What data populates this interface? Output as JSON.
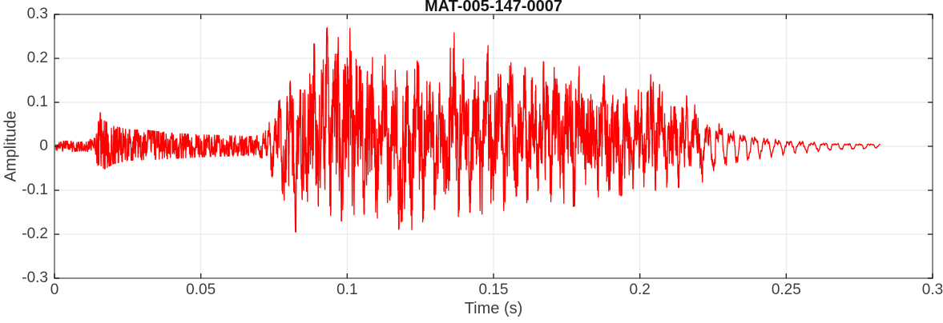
{
  "chart_data": {
    "type": "line",
    "title": "MAT-005-147-0007",
    "xlabel": "Time (s)",
    "ylabel": "Amplitude",
    "xlim": [
      0,
      0.3
    ],
    "ylim": [
      -0.3,
      0.3
    ],
    "grid": true,
    "legend_position": "none",
    "xticks": [
      {
        "v": 0,
        "label": "0"
      },
      {
        "v": 0.05,
        "label": "0.05"
      },
      {
        "v": 0.1,
        "label": "0.1"
      },
      {
        "v": 0.15,
        "label": "0.15"
      },
      {
        "v": 0.2,
        "label": "0.2"
      },
      {
        "v": 0.25,
        "label": "0.25"
      },
      {
        "v": 0.3,
        "label": "0.3"
      }
    ],
    "yticks": [
      {
        "v": 0.3,
        "label": "0.3"
      },
      {
        "v": 0.2,
        "label": "0.2"
      },
      {
        "v": 0.1,
        "label": "0.1"
      },
      {
        "v": 0,
        "label": "0"
      },
      {
        "v": -0.1,
        "label": "-0.1"
      },
      {
        "v": -0.2,
        "label": "-0.2"
      },
      {
        "v": -0.3,
        "label": "-0.3"
      }
    ],
    "colors": {
      "line": "#ff0000",
      "frame": "#8c8c8c",
      "grid": "#e6e6e6",
      "tick_mark": "#262626",
      "tick_label": "#3d3d3d",
      "title": "#151515",
      "background": "#ffffff"
    },
    "signal": {
      "t_start": 0,
      "t_end": 0.282,
      "sample_dt": 7e-05,
      "fundamental_hz": 252,
      "harmonics": [
        [
          1,
          0.58,
          0
        ],
        [
          2,
          0.27,
          1.7
        ],
        [
          3.9,
          0.13,
          0.6
        ],
        [
          7.2,
          0.09,
          2.1
        ]
      ],
      "noise_seed": 987654321,
      "envelope_keypoints": [
        [
          0.0,
          -0.006,
          0.006,
          0.6
        ],
        [
          0.001,
          -0.018,
          0.008,
          0.5
        ],
        [
          0.003,
          -0.01,
          0.012,
          0.7
        ],
        [
          0.006,
          -0.012,
          0.012,
          0.75
        ],
        [
          0.01,
          -0.01,
          0.01,
          0.75
        ],
        [
          0.014,
          -0.016,
          0.02,
          0.8
        ],
        [
          0.0152,
          -0.07,
          0.082,
          0.85
        ],
        [
          0.017,
          -0.052,
          0.058,
          0.85
        ],
        [
          0.02,
          -0.04,
          0.046,
          0.85
        ],
        [
          0.025,
          -0.032,
          0.038,
          0.85
        ],
        [
          0.032,
          -0.03,
          0.036,
          0.85
        ],
        [
          0.04,
          -0.028,
          0.03,
          0.85
        ],
        [
          0.05,
          -0.024,
          0.026,
          0.85
        ],
        [
          0.06,
          -0.022,
          0.024,
          0.85
        ],
        [
          0.068,
          -0.02,
          0.022,
          0.85
        ],
        [
          0.0715,
          -0.028,
          0.03,
          0.55
        ],
        [
          0.0735,
          -0.06,
          0.07,
          0.35
        ],
        [
          0.076,
          -0.09,
          0.11,
          0.35
        ],
        [
          0.0785,
          -0.13,
          0.13,
          0.38
        ],
        [
          0.081,
          -0.19,
          0.155,
          0.4
        ],
        [
          0.084,
          -0.2,
          0.2,
          0.42
        ],
        [
          0.087,
          -0.18,
          0.25,
          0.42
        ],
        [
          0.09,
          -0.17,
          0.26,
          0.45
        ],
        [
          0.094,
          -0.16,
          0.272,
          0.45
        ],
        [
          0.098,
          -0.17,
          0.285,
          0.45
        ],
        [
          0.101,
          -0.16,
          0.268,
          0.45
        ],
        [
          0.104,
          -0.15,
          0.24,
          0.45
        ],
        [
          0.108,
          -0.16,
          0.22,
          0.45
        ],
        [
          0.112,
          -0.17,
          0.21,
          0.45
        ],
        [
          0.116,
          -0.18,
          0.2,
          0.45
        ],
        [
          0.12,
          -0.21,
          0.22,
          0.45
        ],
        [
          0.1225,
          -0.23,
          0.262,
          0.45
        ],
        [
          0.125,
          -0.18,
          0.22,
          0.45
        ],
        [
          0.128,
          -0.15,
          0.19,
          0.45
        ],
        [
          0.131,
          -0.14,
          0.18,
          0.45
        ],
        [
          0.134,
          -0.15,
          0.2,
          0.45
        ],
        [
          0.137,
          -0.16,
          0.268,
          0.45
        ],
        [
          0.14,
          -0.16,
          0.2,
          0.45
        ],
        [
          0.144,
          -0.14,
          0.175,
          0.45
        ],
        [
          0.148,
          -0.17,
          0.23,
          0.45
        ],
        [
          0.152,
          -0.15,
          0.2,
          0.45
        ],
        [
          0.156,
          -0.14,
          0.19,
          0.45
        ],
        [
          0.16,
          -0.13,
          0.185,
          0.45
        ],
        [
          0.164,
          -0.125,
          0.2,
          0.45
        ],
        [
          0.168,
          -0.13,
          0.19,
          0.45
        ],
        [
          0.172,
          -0.13,
          0.2,
          0.45
        ],
        [
          0.176,
          -0.14,
          0.19,
          0.45
        ],
        [
          0.18,
          -0.13,
          0.18,
          0.45
        ],
        [
          0.184,
          -0.12,
          0.17,
          0.45
        ],
        [
          0.188,
          -0.12,
          0.16,
          0.45
        ],
        [
          0.192,
          -0.115,
          0.155,
          0.45
        ],
        [
          0.196,
          -0.11,
          0.15,
          0.45
        ],
        [
          0.2,
          -0.12,
          0.14,
          0.45
        ],
        [
          0.204,
          -0.1,
          0.165,
          0.45
        ],
        [
          0.208,
          -0.1,
          0.13,
          0.42
        ],
        [
          0.212,
          -0.095,
          0.12,
          0.4
        ],
        [
          0.216,
          -0.09,
          0.115,
          0.35
        ],
        [
          0.22,
          -0.085,
          0.1,
          0.28
        ],
        [
          0.224,
          -0.075,
          0.09,
          0.18
        ],
        [
          0.228,
          -0.06,
          0.072,
          0.1
        ],
        [
          0.232,
          -0.05,
          0.056,
          0.07
        ],
        [
          0.236,
          -0.042,
          0.046,
          0.06
        ],
        [
          0.24,
          -0.032,
          0.036,
          0.05
        ],
        [
          0.245,
          -0.026,
          0.028,
          0.05
        ],
        [
          0.25,
          -0.02,
          0.022,
          0.05
        ],
        [
          0.255,
          -0.017,
          0.018,
          0.05
        ],
        [
          0.26,
          -0.014,
          0.015,
          0.05
        ],
        [
          0.265,
          -0.011,
          0.013,
          0.05
        ],
        [
          0.27,
          -0.009,
          0.011,
          0.05
        ],
        [
          0.276,
          -0.008,
          0.01,
          0.05
        ],
        [
          0.282,
          -0.004,
          0.008,
          0.05
        ]
      ]
    }
  }
}
